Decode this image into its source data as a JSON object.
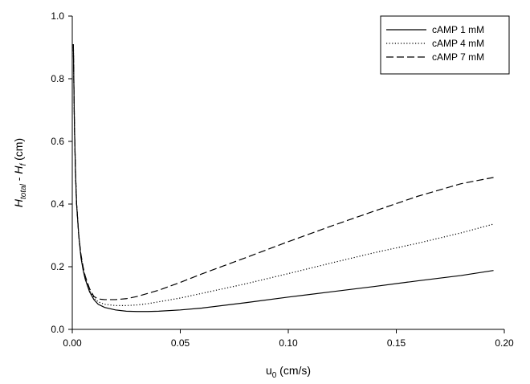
{
  "chart_data": {
    "type": "line",
    "title": "",
    "xlabel": {
      "main": "u",
      "sub": "0",
      "unit": " (cm/s)"
    },
    "ylabel": {
      "main1": "H",
      "sub1": "total",
      "sep": " - ",
      "main2": "H",
      "sub2": "f",
      "unit": " (cm)"
    },
    "xlim": [
      0,
      0.2
    ],
    "ylim": [
      0,
      1.0
    ],
    "x_ticks": [
      0.0,
      0.05,
      0.1,
      0.15,
      0.2
    ],
    "x_tick_labels": [
      "0.00",
      "0.05",
      "0.10",
      "0.15",
      "0.20"
    ],
    "y_ticks": [
      0.0,
      0.2,
      0.4,
      0.6,
      0.8,
      1.0
    ],
    "y_tick_labels": [
      "0.0",
      "0.2",
      "0.4",
      "0.6",
      "0.8",
      "1.0"
    ],
    "grid": false,
    "legend_position": "top-right",
    "series": [
      {
        "name": "cAMP 1 mM",
        "style": "solid",
        "x": [
          0.0005,
          0.001,
          0.0015,
          0.002,
          0.003,
          0.004,
          0.005,
          0.006,
          0.008,
          0.01,
          0.012,
          0.015,
          0.02,
          0.025,
          0.03,
          0.035,
          0.04,
          0.05,
          0.06,
          0.08,
          0.1,
          0.12,
          0.14,
          0.16,
          0.18,
          0.195
        ],
        "y": [
          0.91,
          0.65,
          0.5,
          0.4,
          0.3,
          0.23,
          0.19,
          0.16,
          0.12,
          0.095,
          0.08,
          0.07,
          0.062,
          0.058,
          0.057,
          0.057,
          0.058,
          0.062,
          0.068,
          0.085,
          0.103,
          0.12,
          0.137,
          0.155,
          0.172,
          0.188
        ]
      },
      {
        "name": "cAMP 4 mM",
        "style": "dotted",
        "x": [
          0.0005,
          0.001,
          0.0015,
          0.002,
          0.003,
          0.004,
          0.005,
          0.006,
          0.008,
          0.01,
          0.012,
          0.015,
          0.02,
          0.025,
          0.03,
          0.035,
          0.04,
          0.05,
          0.06,
          0.08,
          0.1,
          0.12,
          0.14,
          0.16,
          0.18,
          0.195
        ],
        "y": [
          0.91,
          0.65,
          0.5,
          0.4,
          0.3,
          0.235,
          0.195,
          0.165,
          0.125,
          0.1,
          0.088,
          0.08,
          0.076,
          0.076,
          0.078,
          0.082,
          0.088,
          0.1,
          0.115,
          0.145,
          0.178,
          0.212,
          0.245,
          0.275,
          0.308,
          0.336
        ]
      },
      {
        "name": "cAMP 7 mM",
        "style": "dashed",
        "x": [
          0.0005,
          0.001,
          0.0015,
          0.002,
          0.003,
          0.004,
          0.005,
          0.006,
          0.008,
          0.01,
          0.012,
          0.015,
          0.02,
          0.025,
          0.03,
          0.035,
          0.04,
          0.05,
          0.06,
          0.08,
          0.1,
          0.12,
          0.14,
          0.16,
          0.18,
          0.195
        ],
        "y": [
          0.91,
          0.65,
          0.5,
          0.4,
          0.3,
          0.24,
          0.2,
          0.17,
          0.13,
          0.105,
          0.097,
          0.095,
          0.095,
          0.098,
          0.105,
          0.115,
          0.125,
          0.15,
          0.177,
          0.228,
          0.28,
          0.33,
          0.378,
          0.425,
          0.465,
          0.485
        ]
      }
    ]
  }
}
